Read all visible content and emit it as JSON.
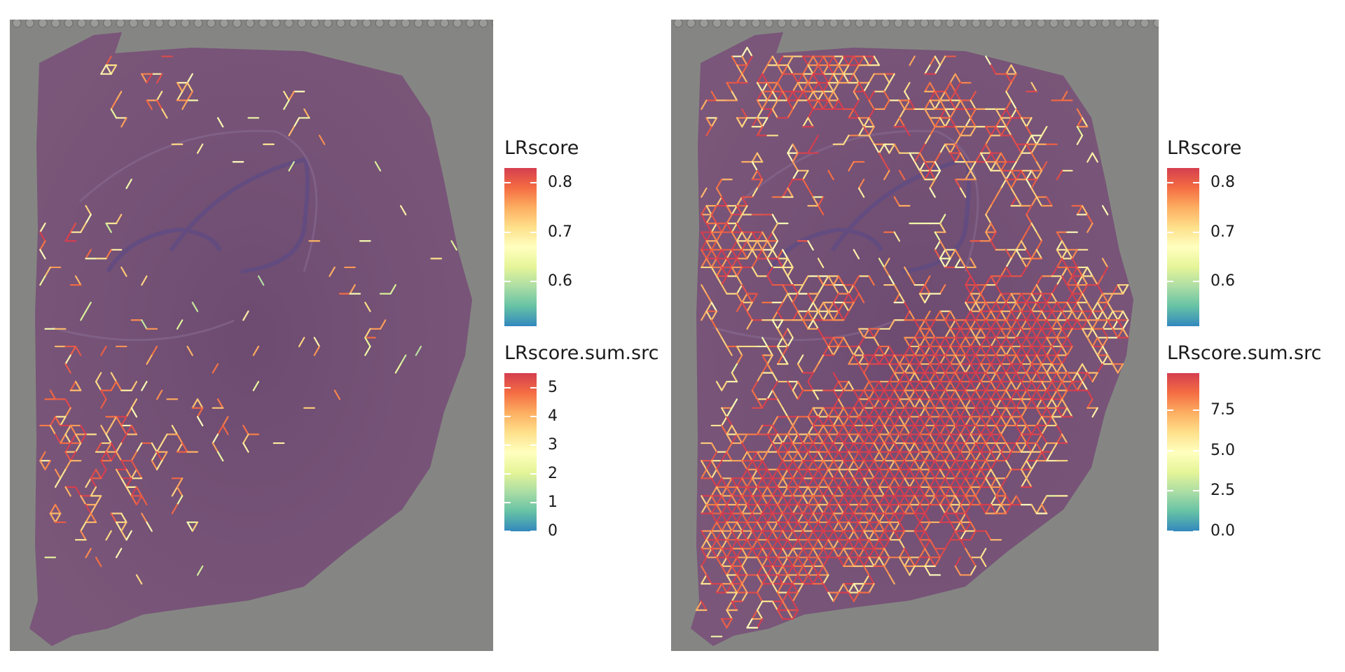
{
  "chart_data": [
    {
      "type": "heatmap",
      "description_note": "",
      "background": "tissue-section",
      "legends": [
        {
          "title": "LRscore",
          "ticks": [
            "0.6",
            "0.7",
            "0.8"
          ],
          "tick_values": [
            0.6,
            0.7,
            0.8
          ],
          "range": [
            0.51,
            0.83
          ]
        },
        {
          "title": "LRscore.sum.src",
          "ticks": [
            "0",
            "1",
            "2",
            "3",
            "4",
            "5"
          ],
          "tick_values": [
            0,
            1,
            2,
            3,
            4,
            5
          ],
          "range": [
            0,
            5.5
          ]
        }
      ],
      "network_density": "sparse"
    },
    {
      "type": "heatmap",
      "description_note": "",
      "background": "tissue-section",
      "legends": [
        {
          "title": "LRscore",
          "ticks": [
            "0.6",
            "0.7",
            "0.8"
          ],
          "tick_values": [
            0.6,
            0.7,
            0.8
          ],
          "range": [
            0.51,
            0.83
          ]
        },
        {
          "title": "LRscore.sum.src",
          "ticks": [
            "0.0",
            "2.5",
            "5.0",
            "7.5"
          ],
          "tick_values": [
            0,
            2.5,
            5.0,
            7.5
          ],
          "range": [
            0,
            9.8
          ]
        }
      ],
      "network_density": "dense"
    }
  ],
  "colors": {
    "scale": [
      "#3288bd",
      "#66c2a5",
      "#abdda4",
      "#e6f598",
      "#ffffbf",
      "#fee08b",
      "#fdae61",
      "#f46d43",
      "#d53e4f"
    ],
    "tissue": "#6e4a6e",
    "background": "#858683"
  }
}
